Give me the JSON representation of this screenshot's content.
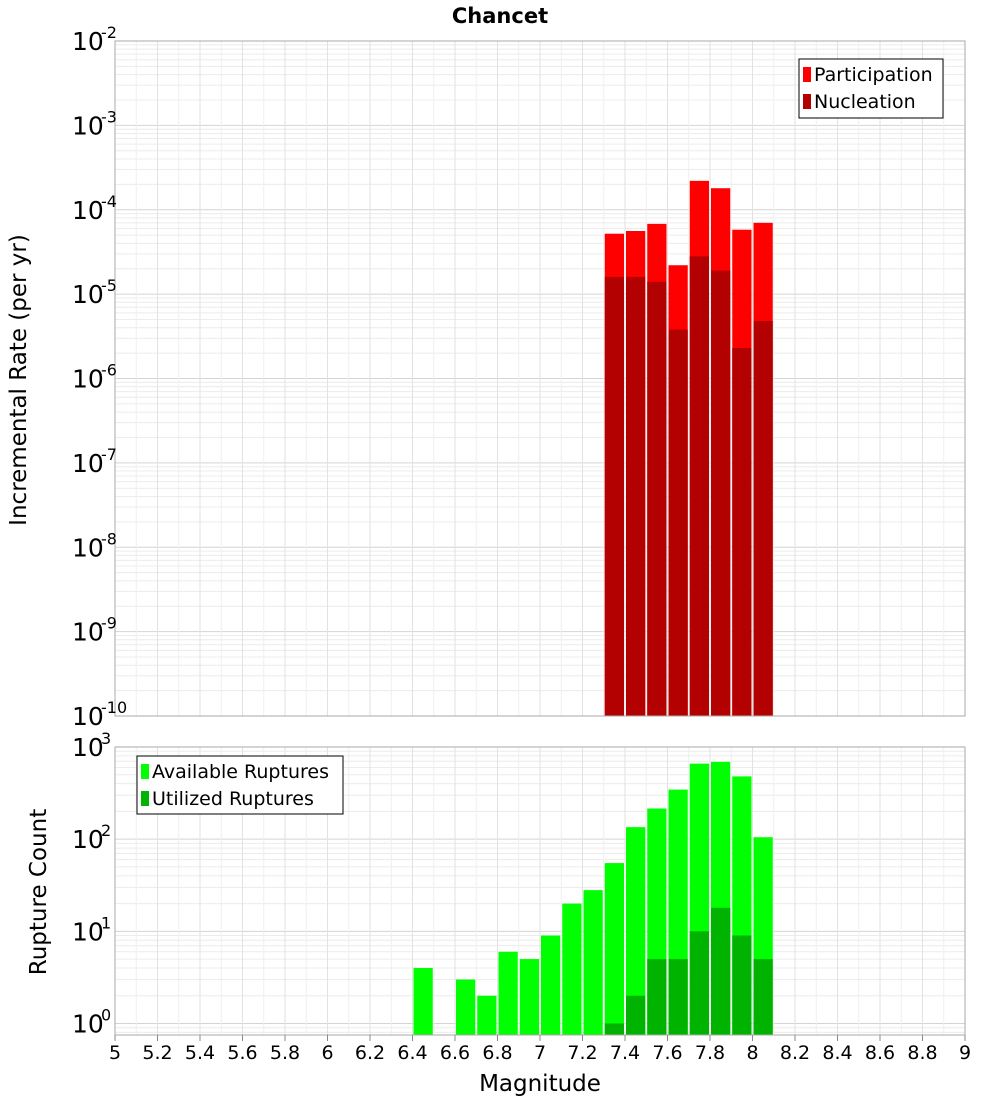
{
  "chart_data": [
    {
      "type": "bar",
      "title": "Chancet",
      "xlabel": "",
      "ylabel": "Incremental Rate (per yr)",
      "yscale": "log",
      "xlim": [
        5,
        9
      ],
      "ylim": [
        1e-10,
        0.01
      ],
      "grid": true,
      "legend_position": "top-right",
      "x": [
        7.35,
        7.45,
        7.55,
        7.65,
        7.75,
        7.85,
        7.95,
        8.05
      ],
      "series": [
        {
          "name": "Participation",
          "color": "#ff0000",
          "values": [
            5.2e-05,
            5.6e-05,
            6.8e-05,
            2.2e-05,
            0.00022,
            0.00018,
            5.8e-05,
            7e-05
          ]
        },
        {
          "name": "Nucleation",
          "color": "#b30000",
          "values": [
            1.6e-05,
            1.6e-05,
            1.4e-05,
            3.8e-06,
            2.8e-05,
            1.9e-05,
            2.3e-06,
            4.8e-06
          ]
        }
      ],
      "y_ticks": [
        {
          "base": "10",
          "exp": "-2"
        },
        {
          "base": "10",
          "exp": "-3"
        },
        {
          "base": "10",
          "exp": "-4"
        },
        {
          "base": "10",
          "exp": "-5"
        },
        {
          "base": "10",
          "exp": "-6"
        },
        {
          "base": "10",
          "exp": "-7"
        },
        {
          "base": "10",
          "exp": "-8"
        },
        {
          "base": "10",
          "exp": "-9"
        },
        {
          "base": "10",
          "exp": "-10"
        }
      ]
    },
    {
      "type": "bar",
      "title": "",
      "xlabel": "Magnitude",
      "ylabel": "Rupture Count",
      "yscale": "log",
      "xlim": [
        5,
        9
      ],
      "ylim": [
        0.75,
        1000
      ],
      "grid": true,
      "legend_position": "top-left",
      "x": [
        6.45,
        6.55,
        6.65,
        6.75,
        6.85,
        6.95,
        7.05,
        7.15,
        7.25,
        7.35,
        7.45,
        7.55,
        7.65,
        7.75,
        7.85,
        7.95,
        8.05
      ],
      "series": [
        {
          "name": "Available Ruptures",
          "color": "#00ff00",
          "values": [
            4,
            0,
            3,
            2,
            6,
            5,
            9,
            20,
            28,
            55,
            135,
            215,
            345,
            660,
            690,
            480,
            105
          ]
        },
        {
          "name": "Utilized Ruptures",
          "color": "#00b300",
          "values": [
            0,
            0,
            0,
            0,
            0,
            0,
            0,
            0,
            0,
            1,
            2,
            5,
            5,
            10,
            18,
            9,
            5
          ]
        }
      ],
      "y_ticks": [
        {
          "base": "10",
          "exp": "3"
        },
        {
          "base": "10",
          "exp": "2"
        },
        {
          "base": "10",
          "exp": "1"
        },
        {
          "base": "10",
          "exp": "0"
        }
      ],
      "x_ticks": [
        "5",
        "5.2",
        "5.4",
        "5.6",
        "5.8",
        "6",
        "6.2",
        "6.4",
        "6.6",
        "6.8",
        "7",
        "7.2",
        "7.4",
        "7.6",
        "7.8",
        "8",
        "8.2",
        "8.4",
        "8.6",
        "8.8",
        "9"
      ]
    }
  ]
}
